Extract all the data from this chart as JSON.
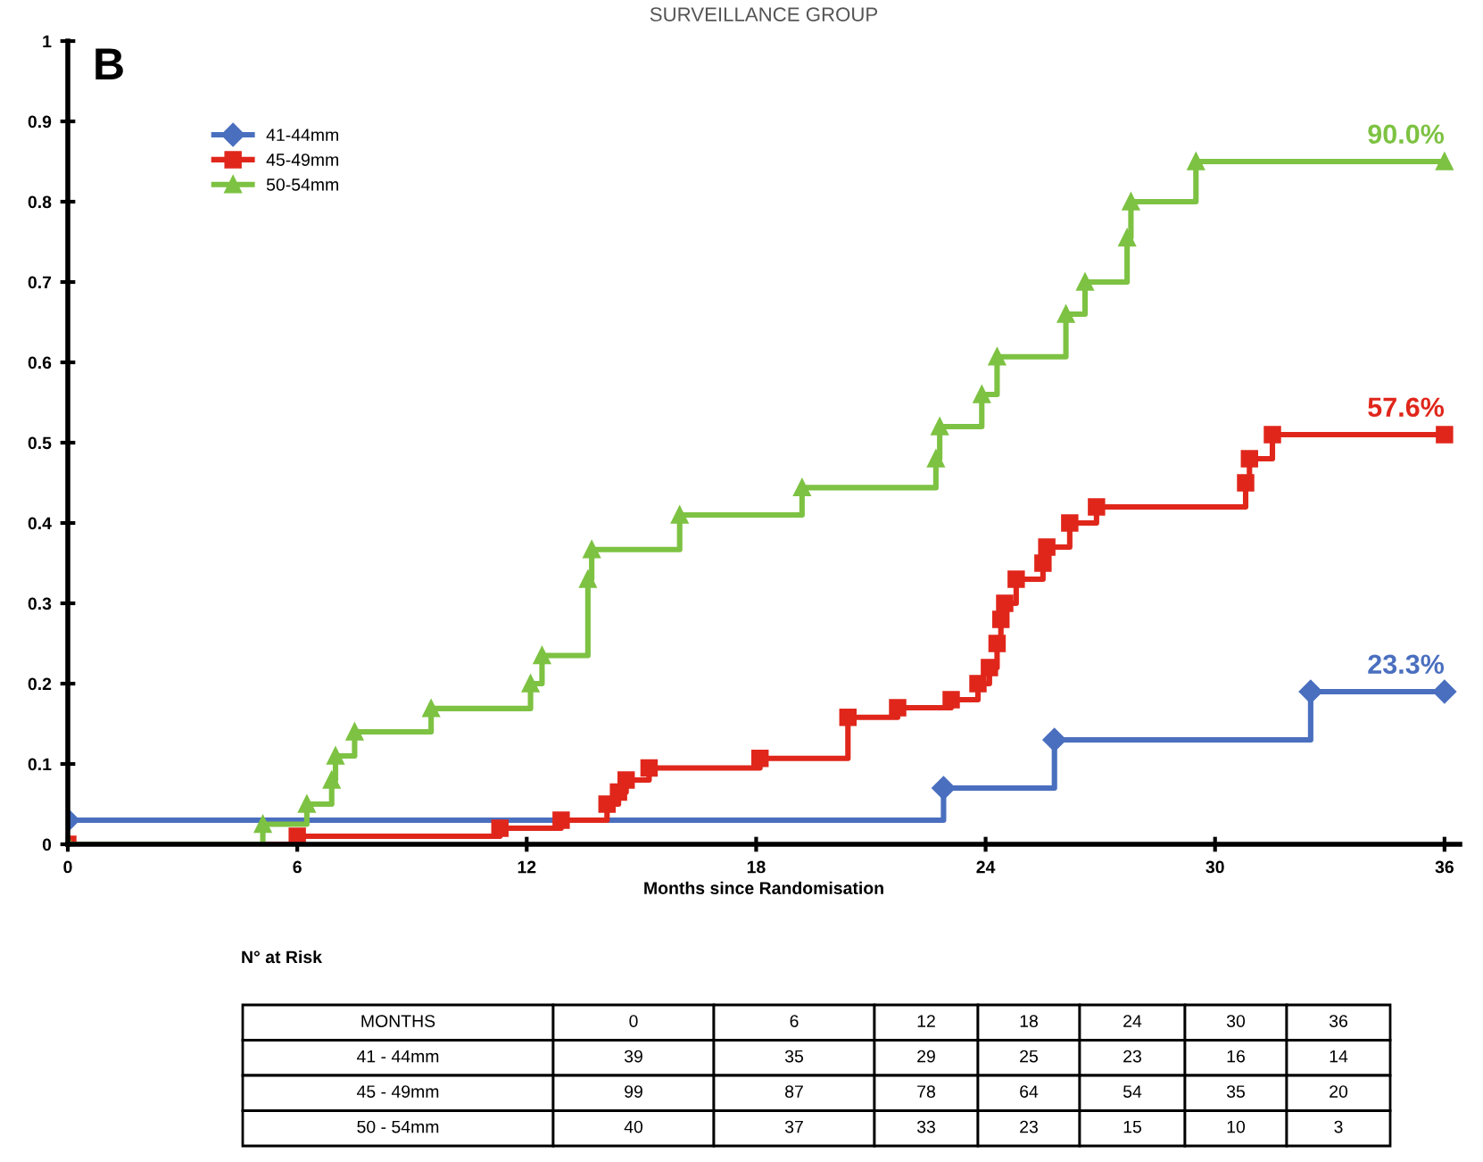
{
  "chart_data": {
    "type": "step",
    "title": "SURVEILLANCE GROUP",
    "xlabel": "Months since Randomisation",
    "xlim": [
      0,
      36.4
    ],
    "xticks": [
      0,
      6,
      12,
      18,
      24,
      30,
      36
    ],
    "ylim": [
      0,
      1
    ],
    "yticks": [
      0,
      0.1,
      0.2,
      0.3,
      0.4,
      0.5,
      0.6,
      0.7,
      0.8,
      0.9,
      1
    ],
    "grid": false,
    "legend": "top left",
    "series": [
      {
        "name": "41-44mm",
        "color": "#4a6fbf",
        "marker": "diamond",
        "x": [
          0,
          22.9,
          25.8,
          32.5,
          36
        ],
        "values": [
          0.03,
          0.07,
          0.13,
          0.19,
          0.19
        ]
      },
      {
        "name": "45-49mm",
        "color": "#e0261b",
        "marker": "square",
        "x": [
          0,
          6.0,
          11.3,
          12.9,
          14.1,
          14.4,
          14.6,
          15.2,
          18.1,
          20.4,
          21.7,
          23.1,
          23.8,
          24.1,
          24.3,
          24.4,
          24.5,
          24.8,
          25.5,
          25.6,
          26.2,
          26.9,
          30.8,
          30.9,
          31.5,
          36
        ],
        "values": [
          0,
          0.01,
          0.02,
          0.03,
          0.05,
          0.065,
          0.08,
          0.095,
          0.107,
          0.158,
          0.17,
          0.18,
          0.2,
          0.22,
          0.25,
          0.28,
          0.3,
          0.33,
          0.35,
          0.37,
          0.4,
          0.42,
          0.45,
          0.48,
          0.51,
          0.51
        ]
      },
      {
        "name": "50-54mm",
        "color": "#7dc242",
        "marker": "triangle",
        "x": [
          0,
          5.1,
          6.25,
          6.9,
          7.0,
          7.5,
          9.5,
          12.1,
          12.4,
          13.6,
          13.7,
          16.0,
          19.2,
          22.7,
          22.8,
          23.9,
          24.3,
          26.1,
          26.6,
          27.7,
          27.8,
          29.5,
          36
        ],
        "values": [
          0,
          0.025,
          0.05,
          0.08,
          0.11,
          0.14,
          0.169,
          0.2,
          0.235,
          0.33,
          0.367,
          0.41,
          0.444,
          0.48,
          0.52,
          0.56,
          0.607,
          0.66,
          0.7,
          0.755,
          0.8,
          0.85,
          0.85
        ]
      }
    ],
    "annotations": [
      "B",
      {
        "text": "90.0%",
        "y": 0.85
      },
      {
        "text": "57.6%",
        "y": 0.51
      },
      {
        "text": "23.3%",
        "y": 0.19
      },
      "N° at Risk",
      "MONTHS",
      "0",
      "6",
      "12",
      "18",
      "24",
      "30",
      "36",
      "41 - 44mm",
      "39",
      "35",
      "29",
      "25",
      "23",
      "16",
      "14",
      "45 - 49mm",
      "99",
      "87",
      "78",
      "64",
      "54",
      "35",
      "20",
      "50 - 54mm",
      "40",
      "37",
      "33",
      "23",
      "15",
      "10",
      "3"
    ]
  }
}
